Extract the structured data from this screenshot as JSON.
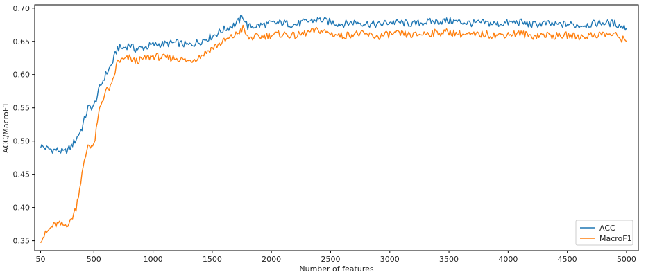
{
  "chart_data": {
    "type": "line",
    "xlabel": "Number of features",
    "ylabel": "ACC/MacroF1",
    "xlim": [
      0,
      5100
    ],
    "ylim": [
      0.335,
      0.705
    ],
    "xticks": [
      50,
      500,
      1000,
      1500,
      2000,
      2500,
      3000,
      3500,
      4000,
      4500,
      5000
    ],
    "xtick_labels": [
      "50",
      "500",
      "1000",
      "1500",
      "2000",
      "2500",
      "3000",
      "3500",
      "4000",
      "4500",
      "5000"
    ],
    "yticks": [
      0.35,
      0.4,
      0.45,
      0.5,
      0.55,
      0.6,
      0.65,
      0.7
    ],
    "ytick_labels": [
      "0.35",
      "0.40",
      "0.45",
      "0.50",
      "0.55",
      "0.60",
      "0.65",
      "0.70"
    ],
    "legend": {
      "position": "lower-right",
      "entries": [
        "ACC",
        "MacroF1"
      ]
    },
    "grid": false,
    "series": [
      {
        "name": "ACC",
        "color": "#1f77b4",
        "x": [
          50,
          100,
          150,
          200,
          250,
          300,
          350,
          400,
          450,
          500,
          550,
          600,
          650,
          700,
          750,
          800,
          850,
          900,
          950,
          1000,
          1100,
          1200,
          1300,
          1400,
          1500,
          1600,
          1700,
          1760,
          1800,
          1900,
          2000,
          2100,
          2200,
          2300,
          2400,
          2500,
          2600,
          2700,
          2800,
          2900,
          3000,
          3100,
          3200,
          3300,
          3400,
          3500,
          3600,
          3700,
          3800,
          3900,
          4000,
          4100,
          4200,
          4300,
          4400,
          4500,
          4600,
          4700,
          4800,
          4900,
          5000
        ],
        "y": [
          0.493,
          0.489,
          0.487,
          0.486,
          0.483,
          0.49,
          0.503,
          0.52,
          0.55,
          0.552,
          0.58,
          0.6,
          0.615,
          0.64,
          0.64,
          0.645,
          0.638,
          0.64,
          0.642,
          0.645,
          0.646,
          0.648,
          0.644,
          0.65,
          0.658,
          0.668,
          0.676,
          0.688,
          0.672,
          0.674,
          0.677,
          0.678,
          0.675,
          0.68,
          0.683,
          0.679,
          0.676,
          0.679,
          0.677,
          0.675,
          0.679,
          0.678,
          0.676,
          0.679,
          0.68,
          0.681,
          0.679,
          0.677,
          0.678,
          0.676,
          0.678,
          0.679,
          0.675,
          0.677,
          0.675,
          0.676,
          0.674,
          0.676,
          0.678,
          0.677,
          0.67
        ]
      },
      {
        "name": "MacroF1",
        "color": "#ff7f0e",
        "x": [
          50,
          100,
          150,
          200,
          250,
          300,
          350,
          400,
          450,
          500,
          550,
          600,
          650,
          700,
          750,
          800,
          850,
          900,
          950,
          1000,
          1100,
          1200,
          1300,
          1400,
          1500,
          1600,
          1700,
          1760,
          1800,
          1900,
          2000,
          2100,
          2200,
          2300,
          2400,
          2500,
          2600,
          2700,
          2800,
          2900,
          3000,
          3100,
          3200,
          3300,
          3400,
          3500,
          3600,
          3700,
          3800,
          3900,
          4000,
          4100,
          4200,
          4300,
          4400,
          4500,
          4600,
          4700,
          4800,
          4900,
          5000
        ],
        "y": [
          0.352,
          0.362,
          0.372,
          0.375,
          0.373,
          0.378,
          0.4,
          0.45,
          0.495,
          0.492,
          0.55,
          0.575,
          0.582,
          0.62,
          0.622,
          0.625,
          0.62,
          0.622,
          0.625,
          0.628,
          0.625,
          0.625,
          0.62,
          0.628,
          0.64,
          0.65,
          0.66,
          0.67,
          0.655,
          0.657,
          0.66,
          0.661,
          0.658,
          0.663,
          0.667,
          0.662,
          0.658,
          0.662,
          0.66,
          0.657,
          0.661,
          0.661,
          0.659,
          0.662,
          0.663,
          0.664,
          0.661,
          0.659,
          0.661,
          0.659,
          0.661,
          0.662,
          0.658,
          0.66,
          0.658,
          0.659,
          0.657,
          0.659,
          0.661,
          0.66,
          0.65
        ]
      }
    ]
  }
}
